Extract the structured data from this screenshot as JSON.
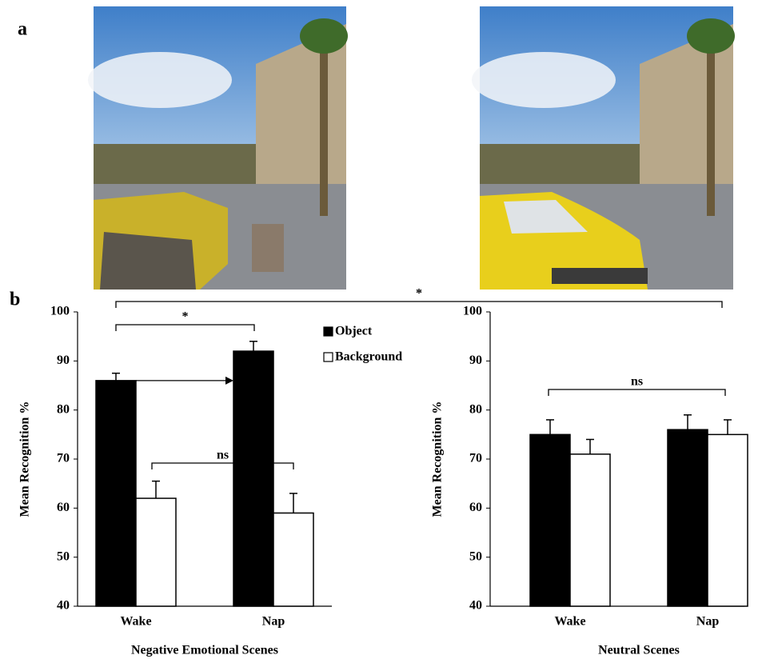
{
  "panel_labels": [
    "a",
    "b"
  ],
  "cross_annotation": "*",
  "chart_data": [
    {
      "type": "bar",
      "ylabel": "Mean Recognition %",
      "xlabel": "Negative Emotional Scenes",
      "categories": [
        "Wake",
        "Nap"
      ],
      "series": [
        {
          "name": "Object",
          "color": "#000000",
          "values": [
            86,
            92
          ],
          "errors": [
            1.5,
            2
          ]
        },
        {
          "name": "Background",
          "color": "#ffffff",
          "values": [
            62,
            59
          ],
          "errors": [
            3.5,
            4
          ]
        }
      ],
      "ylim": [
        40,
        100
      ],
      "yticks": [
        40,
        50,
        60,
        70,
        80,
        90,
        100
      ],
      "legend": true,
      "annotations": [
        "*",
        "ns"
      ]
    },
    {
      "type": "bar",
      "ylabel": "Mean Recognition %",
      "xlabel": "Neutral Scenes",
      "categories": [
        "Wake",
        "Nap"
      ],
      "series": [
        {
          "color": "#000000",
          "values": [
            75,
            76
          ],
          "errors": [
            3,
            3
          ]
        },
        {
          "color": "#ffffff",
          "values": [
            71,
            75
          ],
          "errors": [
            3,
            3
          ]
        }
      ],
      "ylim": [
        40,
        100
      ],
      "yticks": [
        40,
        50,
        60,
        70,
        80,
        90,
        100
      ],
      "legend": false,
      "annotations": [
        "ns"
      ]
    }
  ]
}
